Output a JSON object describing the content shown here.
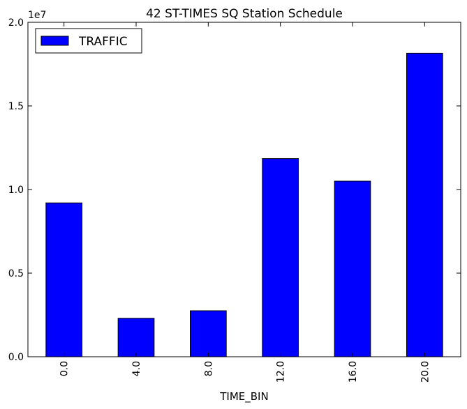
{
  "chart_data": {
    "type": "bar",
    "title": "42 ST-TIMES SQ Station Schedule",
    "xlabel": "TIME_BIN",
    "ylabel": "",
    "y_multiplier_label": "1e7",
    "categories": [
      "0.0",
      "4.0",
      "8.0",
      "12.0",
      "16.0",
      "20.0"
    ],
    "series": [
      {
        "name": "TRAFFIC",
        "color": "#0000ff",
        "values": [
          9200000,
          2300000,
          2750000,
          11850000,
          10500000,
          18150000
        ]
      }
    ],
    "ylim": [
      0,
      20000000
    ],
    "yticks": [
      0,
      5000000,
      10000000,
      15000000,
      20000000
    ],
    "ytick_labels": [
      "0.0",
      "0.5",
      "1.0",
      "1.5",
      "2.0"
    ],
    "grid": false,
    "legend_position": "top-left"
  }
}
